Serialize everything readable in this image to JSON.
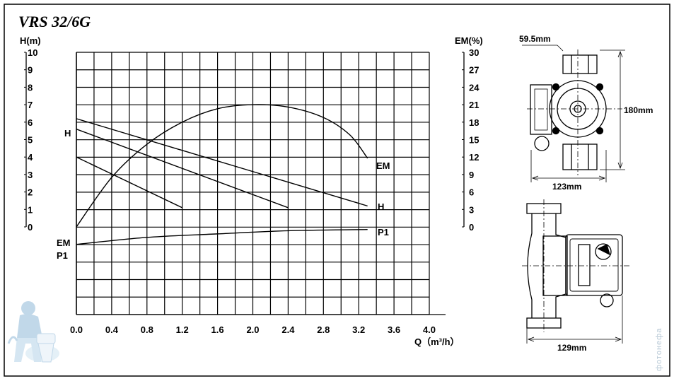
{
  "title": "VRS 32/6G",
  "chart_data": {
    "type": "line",
    "xlabel": "Q（m³/h）",
    "ylabel_left": "H(m)",
    "ylabel_right": "EM(%)",
    "xlim": [
      0,
      4.0
    ],
    "ylim_left": [
      0,
      10
    ],
    "ylim_right": [
      0,
      30
    ],
    "x_ticks": [
      "0.0",
      "0.4",
      "0.8",
      "1.2",
      "1.6",
      "2.0",
      "2.4",
      "2.8",
      "3.2",
      "3.6",
      "4.0"
    ],
    "y_ticks_left": [
      "0",
      "1",
      "2",
      "3",
      "4",
      "5",
      "6",
      "7",
      "8",
      "9",
      "10"
    ],
    "y_ticks_right": [
      "0",
      "3",
      "6",
      "9",
      "12",
      "15",
      "18",
      "21",
      "24",
      "27",
      "30"
    ],
    "grid": true,
    "series": [
      {
        "name": "H",
        "axis": "left",
        "points": [
          [
            0,
            6.2
          ],
          [
            3.3,
            1.2
          ]
        ]
      },
      {
        "name": "H",
        "axis": "left",
        "points": [
          [
            0,
            5.6
          ],
          [
            2.4,
            1.1
          ]
        ]
      },
      {
        "name": "H",
        "axis": "left",
        "points": [
          [
            0,
            4.0
          ],
          [
            1.2,
            1.1
          ]
        ]
      },
      {
        "name": "EM",
        "axis": "right",
        "points": [
          [
            0,
            0
          ],
          [
            0.4,
            8.5
          ],
          [
            0.8,
            14.2
          ],
          [
            1.2,
            18.0
          ],
          [
            1.6,
            20.3
          ],
          [
            2.0,
            21.0
          ],
          [
            2.4,
            20.6
          ],
          [
            2.8,
            18.8
          ],
          [
            3.1,
            15.8
          ],
          [
            3.3,
            11.8
          ]
        ]
      },
      {
        "name": "P1",
        "axis": "aux",
        "points": [
          [
            0,
            -1.0
          ],
          [
            0.8,
            -0.6
          ],
          [
            1.6,
            -0.4
          ],
          [
            2.4,
            -0.22
          ],
          [
            3.3,
            -0.15
          ]
        ]
      }
    ],
    "curve_labels": {
      "h_left": "H",
      "em_left": "EM",
      "p1_left": "P1",
      "em_right": "EM",
      "h_right": "H",
      "p1_right": "P1"
    }
  },
  "dimensions": {
    "top_offset": "59.5mm",
    "height": "180mm",
    "width_front": "123mm",
    "width_side": "129mm"
  },
  "watermark": "фотонефа"
}
